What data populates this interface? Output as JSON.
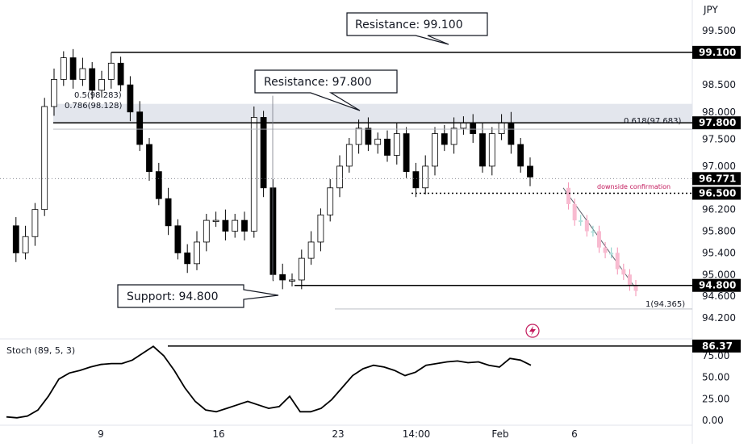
{
  "currency": "JPY",
  "price_axis": {
    "ticks": [
      "99.500",
      "98.500",
      "98.000",
      "97.500",
      "97.000",
      "96.200",
      "95.800",
      "95.400",
      "95.000",
      "94.600",
      "94.200"
    ],
    "tick_values": [
      99.5,
      98.5,
      98.0,
      97.5,
      97.0,
      96.2,
      95.8,
      95.4,
      95.0,
      94.6,
      94.2
    ]
  },
  "price_badges": [
    {
      "label": "99.100",
      "value": 99.1,
      "color": "#000000"
    },
    {
      "label": "97.800",
      "value": 97.8,
      "color": "#000000"
    },
    {
      "label": "96.771",
      "value": 96.771,
      "color": "#000000"
    },
    {
      "label": "96.500",
      "value": 96.5,
      "color": "#000000"
    },
    {
      "label": "94.800",
      "value": 94.8,
      "color": "#000000"
    }
  ],
  "time_axis": {
    "labels": [
      "9",
      "16",
      "23",
      "14:00",
      "Feb",
      "6"
    ]
  },
  "callouts": {
    "resistance_high": "Resistance: 99.100",
    "resistance_low": "Resistance: 97.800",
    "support": "Support: 94.800"
  },
  "annotations": {
    "fib_618": "0.618(97.683)",
    "fib_1": "1(94.365)",
    "fib_left_1": "0.5(98.283)",
    "fib_left_2": "0.786(98.128)",
    "downside": "downside confirmation",
    "zigzag_icon": "lightning-icon"
  },
  "stoch": {
    "label": "Stoch (89, 5, 3)",
    "ticks": [
      "75.00",
      "50.00",
      "25.00",
      "0.00"
    ],
    "tick_values": [
      75,
      50,
      25,
      0
    ],
    "badge": "86.37",
    "badge_value": 86.37
  },
  "colors": {
    "up": "#ffffff",
    "down": "#000000",
    "projection_up": "#b2dfdb",
    "projection_down": "#f8bbd0",
    "zone": "#e0e3eb",
    "downside": "#c2185b"
  },
  "chart_data": {
    "type": "candlestick",
    "symbol_currency": "JPY",
    "ylim": [
      94.1,
      99.7
    ],
    "levels": [
      {
        "name": "Resistance",
        "value": 99.1
      },
      {
        "name": "Resistance",
        "value": 97.8
      },
      {
        "name": "Support",
        "value": 94.8
      },
      {
        "name": "downside confirmation",
        "value": 96.5
      },
      {
        "name": "last",
        "value": 96.771
      }
    ],
    "zones": [
      {
        "from": 97.8,
        "to": 98.15
      },
      {
        "from": 94.35,
        "to": 94.8
      }
    ],
    "fib": [
      {
        "label": "0.618(97.683)",
        "value": 97.683
      },
      {
        "label": "1(94.365)",
        "value": 94.365
      }
    ],
    "close_path": [
      95.9,
      95.4,
      95.7,
      96.2,
      98.1,
      98.6,
      99.0,
      98.6,
      98.8,
      98.4,
      98.6,
      98.9,
      98.5,
      98.0,
      97.4,
      96.9,
      96.4,
      95.9,
      95.4,
      95.2,
      95.6,
      96.0,
      96.0,
      95.8,
      96.0,
      95.8,
      97.9,
      96.6,
      95.0,
      94.9,
      94.9,
      95.3,
      95.6,
      96.1,
      96.6,
      97.0,
      97.4,
      97.7,
      97.4,
      97.5,
      97.2,
      97.6,
      96.9,
      96.6,
      97.0,
      97.6,
      97.4,
      97.7,
      97.8,
      97.6,
      97.0,
      97.6,
      97.8,
      97.4,
      97.0,
      96.8
    ],
    "projection": [
      96.6,
      96.3,
      96.0,
      96.0,
      95.8,
      95.8,
      95.5,
      95.4,
      95.4,
      95.1,
      95.0,
      94.8,
      94.7
    ],
    "stoch_values": [
      4,
      3,
      5,
      12,
      28,
      48,
      55,
      58,
      62,
      65,
      66,
      66,
      70,
      78,
      86,
      75,
      58,
      38,
      22,
      12,
      10,
      14,
      18,
      22,
      18,
      14,
      16,
      28,
      10,
      10,
      14,
      24,
      38,
      52,
      60,
      64,
      62,
      58,
      52,
      56,
      64,
      66,
      68,
      69,
      67,
      68,
      64,
      62,
      72,
      70,
      64
    ]
  }
}
